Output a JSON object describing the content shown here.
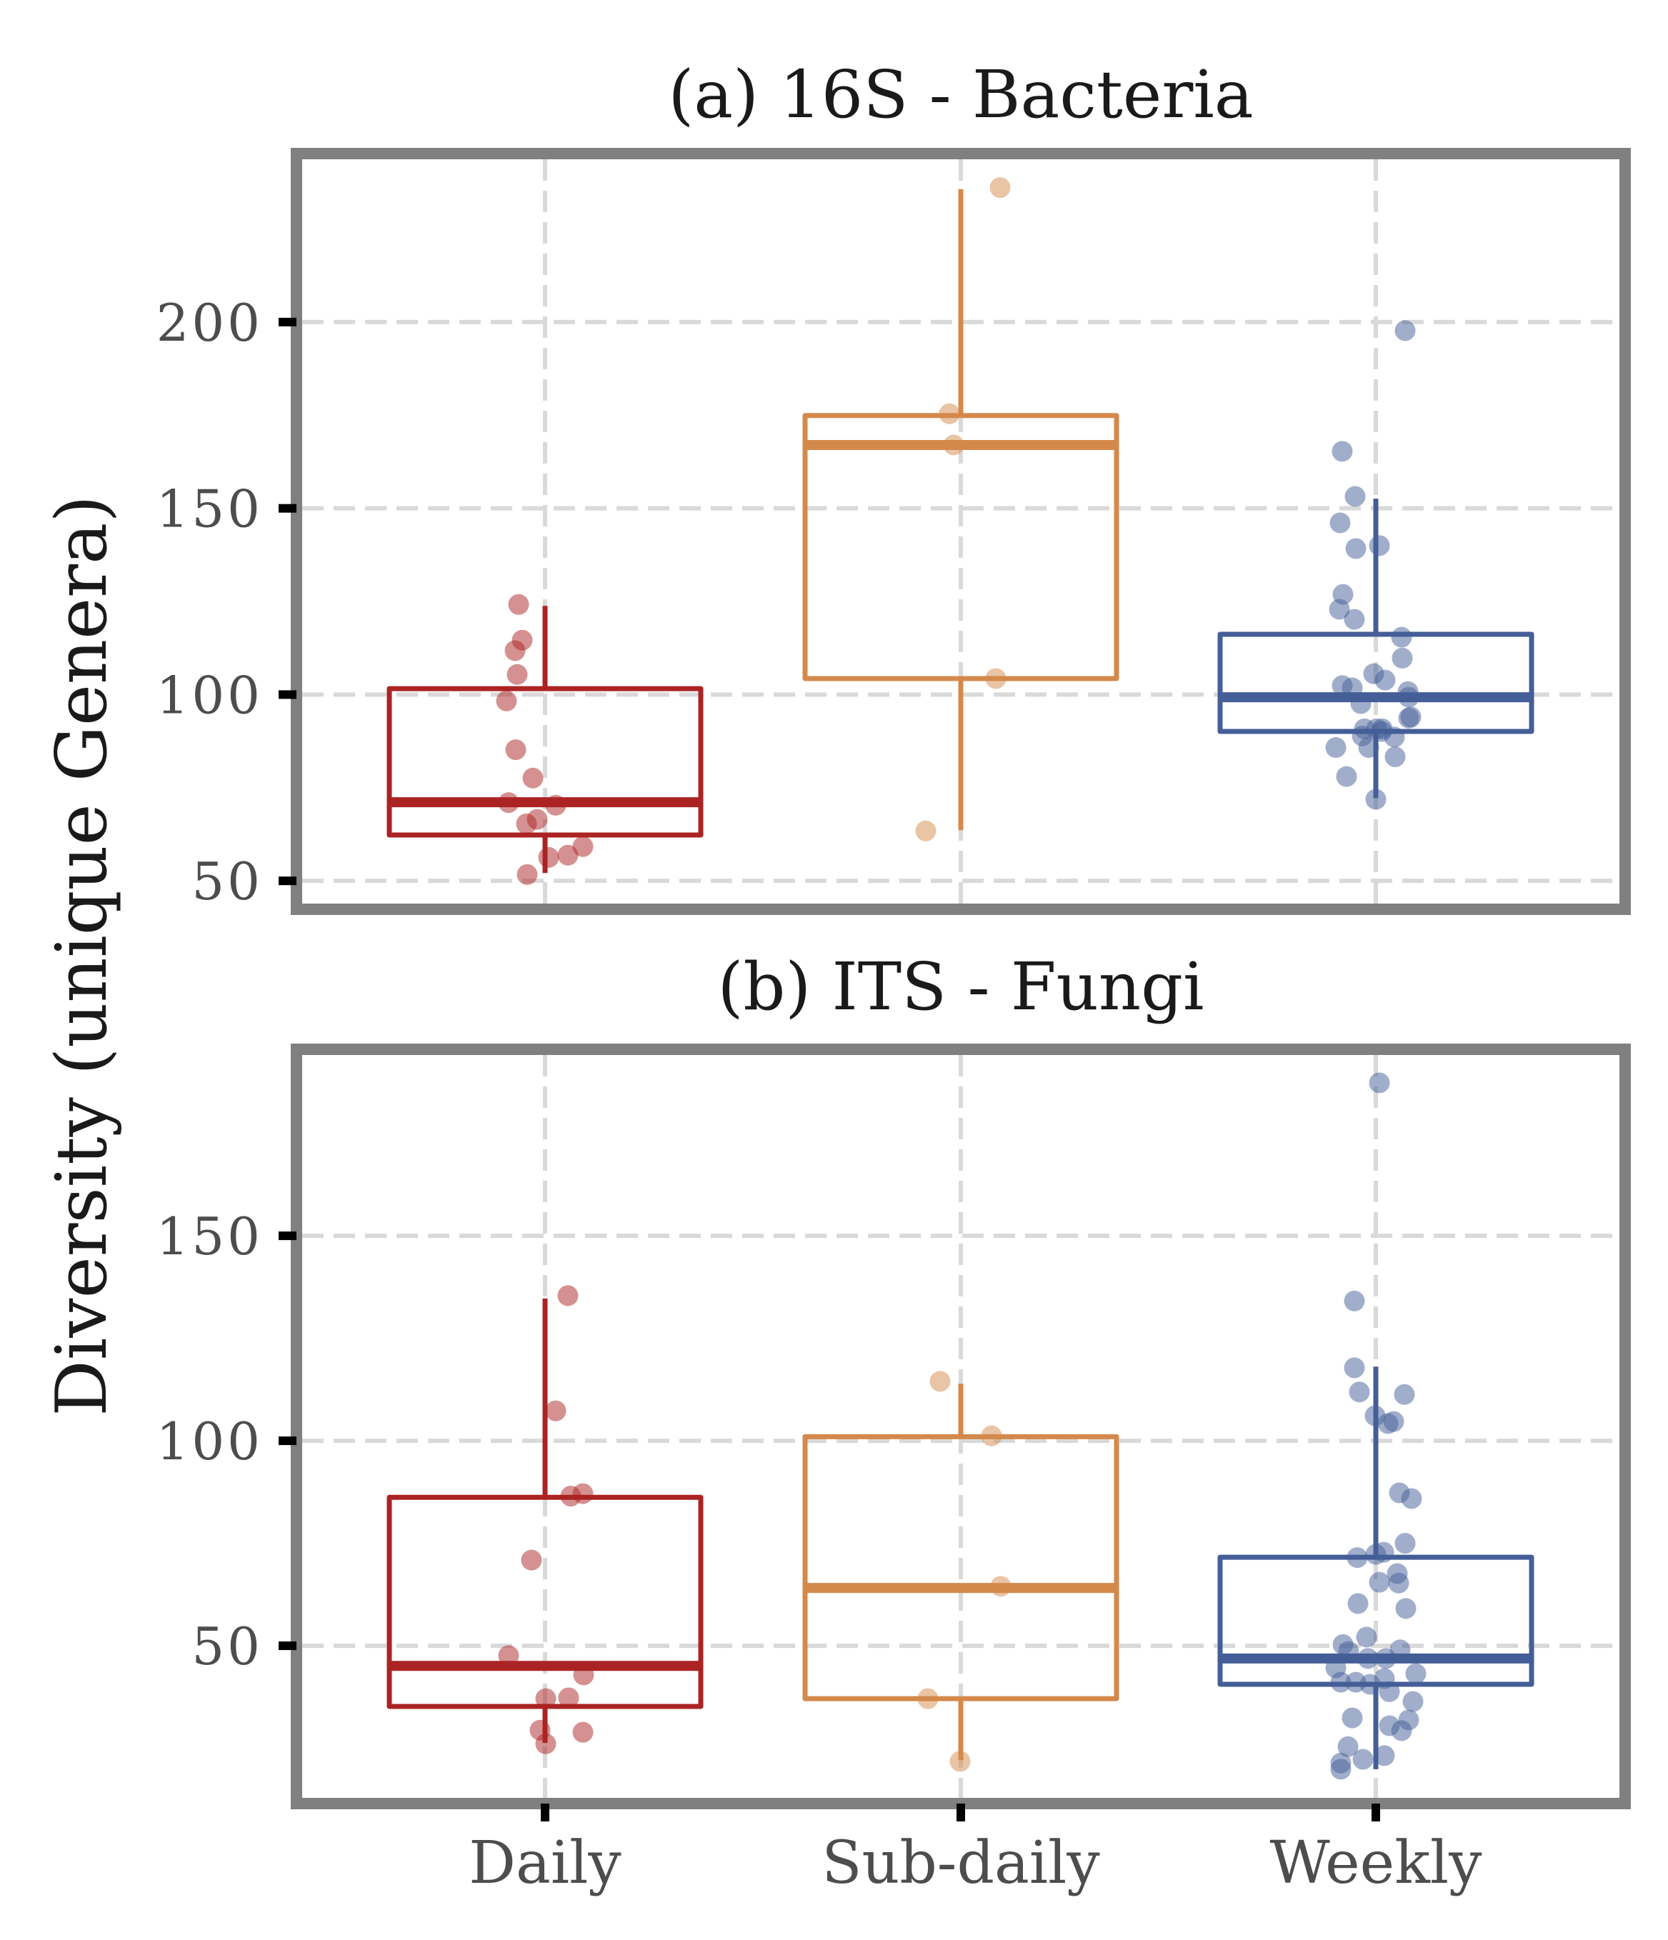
{
  "chart_data": {
    "type": "boxplot",
    "ylabel": "Diversity (unique Genera)",
    "categories": [
      "Daily",
      "Sub-daily",
      "Weekly"
    ],
    "colors": {
      "Daily": "#ab2323",
      "Sub-daily": "#d4894b",
      "Weekly": "#445e97"
    },
    "grid": true,
    "panels": [
      {
        "title": "(a) 16S - Bacteria",
        "ylim": [
          43.9,
          243.7
        ],
        "yticks": [
          50,
          100,
          150,
          200
        ],
        "ytick_labels": [
          "50",
          "100",
          "150",
          "200"
        ],
        "boxes": [
          {
            "category": "Daily",
            "whisker_low": 52.1,
            "q1": 62.3,
            "median": 71.1,
            "q3": 101.6,
            "whisker_high": 123.8,
            "points": [
              124.2,
              114.6,
              111.8,
              105.4,
              98.3,
              85.2,
              77.6,
              71.0,
              70.3,
              66.5,
              65.3,
              59.2,
              56.9,
              56.3,
              51.7
            ]
          },
          {
            "category": "Sub-daily",
            "whisker_low": 63.6,
            "q1": 104.3,
            "median": 167.0,
            "q3": 174.9,
            "whisker_high": 235.7,
            "points": [
              236.1,
              175.4,
              167.0,
              104.3,
              63.4
            ]
          },
          {
            "category": "Weekly",
            "whisker_low": 72.2,
            "q1": 90.1,
            "median": 99.3,
            "q3": 116.2,
            "whisker_high": 152.6,
            "points": [
              197.7,
              165.3,
              153.2,
              146.1,
              139.2,
              140.0,
              126.9,
              122.9,
              120.2,
              115.4,
              109.8,
              105.6,
              103.9,
              102.4,
              101.8,
              99.3,
              100.8,
              97.6,
              93.7,
              94.0,
              90.8,
              90.8,
              90.8,
              90.1,
              88.9,
              88.6,
              85.8,
              85.8,
              83.3,
              78.0,
              71.9
            ]
          }
        ]
      },
      {
        "title": "(b) ITS - Fungi",
        "ylim": [
          12.9,
          194.1
        ],
        "yticks": [
          50,
          100,
          150
        ],
        "ytick_labels": [
          "50",
          "100",
          "150"
        ],
        "boxes": [
          {
            "category": "Daily",
            "whisker_low": 26.3,
            "q1": 35.2,
            "median": 45.1,
            "q3": 86.2,
            "whisker_high": 134.7,
            "points": [
              135.4,
              107.3,
              86.5,
              87.1,
              70.9,
              47.6,
              42.9,
              37.1,
              37.3,
              29.4,
              28.9,
              26.1
            ]
          },
          {
            "category": "Sub-daily",
            "whisker_low": 22.1,
            "q1": 37.1,
            "median": 64.1,
            "q3": 101.0,
            "whisker_high": 113.9,
            "points": [
              114.5,
              101.2,
              64.5,
              37.1,
              21.8
            ]
          },
          {
            "category": "Weekly",
            "whisker_low": 19.9,
            "q1": 40.6,
            "median": 46.9,
            "q3": 71.6,
            "whisker_high": 118.1,
            "points": [
              187.3,
              134.1,
              117.8,
              111.9,
              111.3,
              106.1,
              104.2,
              104.7,
              87.3,
              85.9,
              75.0,
              71.5,
              72.3,
              72.8,
              67.6,
              65.5,
              65.3,
              60.3,
              59.1,
              52.1,
              50.3,
              48.6,
              49.0,
              46.9,
              46.9,
              44.6,
              41.1,
              41.1,
              40.6,
              42.0,
              43.2,
              38.8,
              36.4,
              32.4,
              30.5,
              29.3,
              31.9,
              25.4,
              22.3,
              23.2,
              21.4,
              19.9
            ]
          }
        ]
      }
    ]
  }
}
